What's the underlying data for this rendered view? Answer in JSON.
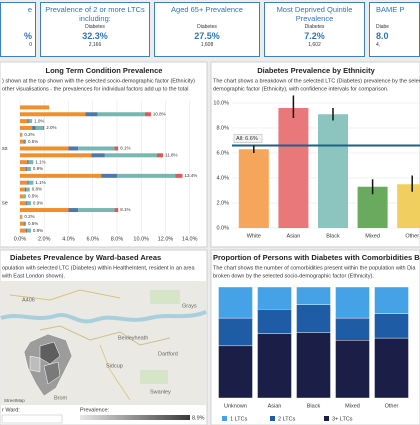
{
  "kpis": [
    {
      "title": "e",
      "value": "%",
      "count": "0"
    },
    {
      "title": "Prevalence of 2 or more LTCs including:",
      "measure": "Diabetes",
      "value": "32.3%",
      "count": "2,166"
    },
    {
      "title": "Aged 65+ Prevalence",
      "measure": "Diabetes",
      "value": "27.5%",
      "count": "1,608"
    },
    {
      "title": "Most Deprived Quintile Prevalence",
      "measure": "Diabetes",
      "value": "7.2%",
      "count": "1,602"
    },
    {
      "title": "BAME P",
      "measure": "Diabe",
      "value": "8.0",
      "count": "4,"
    }
  ],
  "chart_data": [
    {
      "type": "bar",
      "orientation": "horizontal",
      "stacked": true,
      "title": "Long Term Condition Prevalence",
      "subtitle": [
        ") shown at the top shown with the selected socio-demographic factor (Ethnicity)",
        "other visualisations - the prevalences for individual factors add up to the total"
      ],
      "categories": [
        null,
        null,
        null,
        null,
        null,
        null,
        "ss",
        null,
        null,
        null,
        null,
        null,
        null,
        null,
        "se",
        null,
        null,
        null,
        null
      ],
      "series": [
        {
          "color": "#f28e2b",
          "values": [
            2.4,
            5.4,
            0.6,
            1.0,
            0.1,
            0.3,
            4.0,
            5.9,
            0.6,
            0.5,
            6.7,
            0.6,
            0.4,
            0.3,
            0.5,
            4.0,
            0.1,
            0.3,
            0.5
          ]
        },
        {
          "color": "#4e79a7",
          "values": [
            0,
            1.0,
            0.1,
            0.3,
            0,
            0.1,
            0.8,
            1.1,
            0.1,
            0.1,
            1.3,
            0.1,
            0.1,
            0,
            0.1,
            0.8,
            0,
            0.1,
            0.1
          ]
        },
        {
          "color": "#76b7b2",
          "values": [
            0,
            3.9,
            0.3,
            0.6,
            0.1,
            0.1,
            3.0,
            4.3,
            0.4,
            0.3,
            4.8,
            0.4,
            0.3,
            0.2,
            0.3,
            3.0,
            0.1,
            0.1,
            0.3
          ]
        },
        {
          "color": "#e15759",
          "values": [
            0,
            0.5,
            0,
            0.1,
            0,
            0,
            0.3,
            0.5,
            0,
            0,
            0.6,
            0,
            0,
            0,
            0,
            0.3,
            0,
            0,
            0
          ]
        }
      ],
      "total_labels": [
        null,
        "10.8%",
        "1.0%",
        "2.0%",
        "0.2%",
        "0.5%",
        "8.1%",
        "11.8%",
        "1.1%",
        "0.9%",
        "13.4%",
        "1.1%",
        "0.8%",
        "0.5%",
        "0.9%",
        "8.1%",
        "0.2%",
        "0.5%",
        "0.9%"
      ],
      "xlim": [
        0,
        14.6
      ],
      "xticks": [
        {
          "value": 0,
          "label": "0.0%"
        },
        {
          "value": 2,
          "label": "2.0%"
        },
        {
          "value": 4,
          "label": "4.0%"
        },
        {
          "value": 6,
          "label": "6.0%"
        },
        {
          "value": 8,
          "label": "8.0%"
        },
        {
          "value": 10,
          "label": "10.0%"
        },
        {
          "value": 12,
          "label": "12.0%"
        },
        {
          "value": 14,
          "label": "14.0%"
        }
      ],
      "grid": true
    },
    {
      "type": "bar",
      "title": "Diabetes Prevalence by Ethnicity",
      "subtitle": [
        "The chart shows a breakdown of the selected LTC (Diabetes) prevalence by the select",
        "demographic factor (Ethnicity), with confidence intervals for comparison."
      ],
      "categories": [
        "White",
        "Asian",
        "Black",
        "Mixed",
        "Other"
      ],
      "values": [
        6.3,
        9.6,
        9.1,
        3.3,
        3.5
      ],
      "colors": [
        "#f5a65b",
        "#e8787a",
        "#8cc5c0",
        "#6aaa5e",
        "#f1cf5e"
      ],
      "ci_low": [
        6.0,
        8.8,
        8.6,
        2.7,
        2.9
      ],
      "ci_high": [
        6.6,
        10.6,
        9.6,
        3.9,
        4.2
      ],
      "reference": {
        "value": 6.6,
        "label": "All: 6.6%",
        "color": "#1f5f8b"
      },
      "ylim": [
        0,
        10.8
      ],
      "yticks": [
        {
          "value": 0,
          "label": "0.0%"
        },
        {
          "value": 2,
          "label": "2.0%"
        },
        {
          "value": 4,
          "label": "4.0%"
        },
        {
          "value": 6,
          "label": "6.0%"
        },
        {
          "value": 8,
          "label": "8.0%"
        },
        {
          "value": 10,
          "label": "10.0%"
        }
      ],
      "grid": true
    },
    {
      "type": "stacked-bar",
      "title": "Proportion of Persons with Diabetes with Comorbidities B",
      "subtitle": [
        "The chart shows the number of comorbidities present within the population with Dia",
        "broken down by the selected socio-demographic factor (Ethnicity)."
      ],
      "categories": [
        "Unknown",
        "Asian",
        "Black",
        "Mixed",
        "Other"
      ],
      "series": [
        {
          "name": "1 LTCs",
          "color": "#45a2e6",
          "values": [
            28,
            20,
            16,
            28,
            24
          ]
        },
        {
          "name": "2 LTCs",
          "color": "#1f5ca6",
          "values": [
            25,
            22,
            25,
            20,
            22
          ]
        },
        {
          "name": "3+ LTCs",
          "color": "#1b1f48",
          "values": [
            47,
            58,
            59,
            52,
            54
          ]
        }
      ],
      "ylim": [
        0,
        100
      ]
    }
  ],
  "map": {
    "title": "Diabetes Prevalence by Ward-based Areas",
    "description": [
      "opulation with selected LTC (Diabetes) within HealtheIntent, resident in an area",
      "with East London shown)."
    ],
    "places": [
      "A406",
      "Grays",
      "Bexleyheath",
      "Dartford",
      "Sidcup",
      "Swanley",
      "Brom"
    ],
    "attribution": "StreetMap",
    "filter_label": "r Ward:",
    "legend_title": "Prevalence:",
    "legend_max": "8.9%"
  }
}
